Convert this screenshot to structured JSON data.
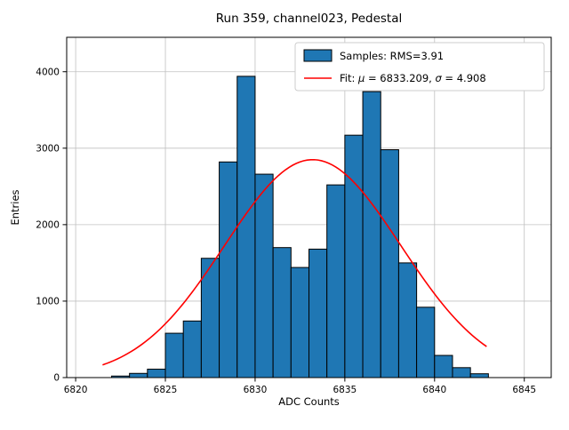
{
  "title": "Run 359, channel023, Pedestal",
  "chart_data": {
    "type": "bar",
    "title": "Run 359, channel023, Pedestal",
    "xlabel": "ADC Counts",
    "ylabel": "Entries",
    "xlim": [
      6819.5,
      6846.5
    ],
    "ylim": [
      0,
      4450
    ],
    "xticks": [
      6820,
      6825,
      6830,
      6835,
      6840,
      6845
    ],
    "yticks": [
      0,
      1000,
      2000,
      3000,
      4000
    ],
    "grid": true,
    "bar_color": "#1f77b4",
    "bar_edge_color": "#000000",
    "grid_color": "#c0c0c0",
    "bins": {
      "width": 1,
      "left_edges": [
        6822,
        6823,
        6824,
        6825,
        6826,
        6827,
        6828,
        6829,
        6830,
        6831,
        6832,
        6833,
        6834,
        6835,
        6836,
        6837,
        6838,
        6839,
        6840,
        6841,
        6842
      ],
      "counts": [
        20,
        55,
        110,
        580,
        740,
        1560,
        2820,
        3940,
        2660,
        1700,
        1440,
        1680,
        2520,
        3170,
        3740,
        2980,
        1500,
        920,
        290,
        130,
        50
      ]
    },
    "fit": {
      "mu": 6833.209,
      "sigma": 4.908,
      "amplitude": 2850,
      "x_start": 6821.5,
      "x_end": 6843.0,
      "color": "#ff0000"
    },
    "legend": {
      "position": "upper right",
      "items": [
        {
          "type": "patch",
          "label": "Samples: RMS=3.91"
        },
        {
          "type": "line",
          "label": "Fit: μ = 6833.209, σ = 4.908"
        }
      ]
    }
  }
}
